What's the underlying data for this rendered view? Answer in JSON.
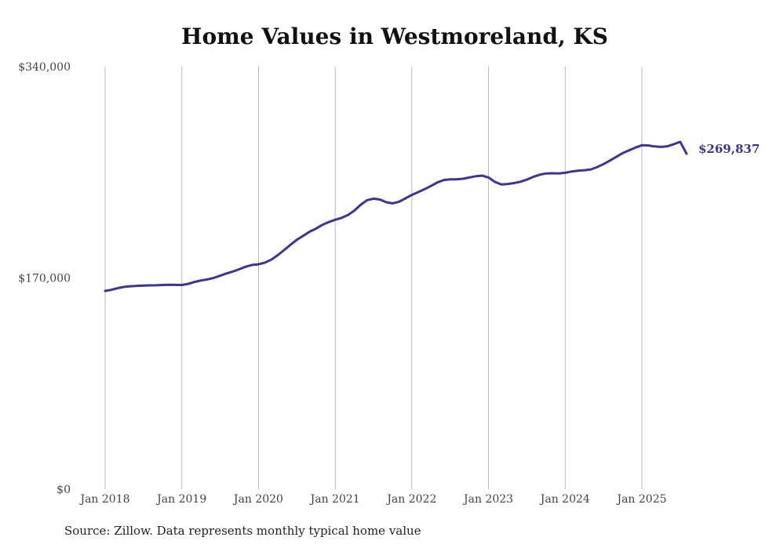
{
  "chart_data": {
    "type": "line",
    "title": "Home Values in Westmoreland, KS",
    "xlabel": "",
    "ylabel": "",
    "ylim": [
      0,
      340000
    ],
    "y_ticks": [
      0,
      170000,
      340000
    ],
    "y_tick_labels": [
      "$0",
      "$170,000",
      "$340,000"
    ],
    "x_ticks": [
      "2018-01",
      "2019-01",
      "2020-01",
      "2021-01",
      "2022-01",
      "2023-01",
      "2024-01",
      "2025-01"
    ],
    "x_tick_labels": [
      "Jan 2018",
      "Jan 2019",
      "Jan 2020",
      "Jan 2021",
      "Jan 2022",
      "Jan 2023",
      "Jan 2024",
      "Jan 2025"
    ],
    "grid": "vertical",
    "line_color": "#3d3594",
    "end_label": "$269,837",
    "series": [
      {
        "x": [
          "2018-01",
          "2018-02",
          "2018-03",
          "2018-04",
          "2018-05",
          "2018-06",
          "2018-07",
          "2018-08",
          "2018-09",
          "2018-10",
          "2018-11",
          "2018-12",
          "2019-01",
          "2019-02",
          "2019-03",
          "2019-04",
          "2019-05",
          "2019-06",
          "2019-07",
          "2019-08",
          "2019-09",
          "2019-10",
          "2019-11",
          "2019-12",
          "2020-01",
          "2020-02",
          "2020-03",
          "2020-04",
          "2020-05",
          "2020-06",
          "2020-07",
          "2020-08",
          "2020-09",
          "2020-10",
          "2020-11",
          "2020-12",
          "2021-01",
          "2021-02",
          "2021-03",
          "2021-04",
          "2021-05",
          "2021-06",
          "2021-07",
          "2021-08",
          "2021-09",
          "2021-10",
          "2021-11",
          "2021-12",
          "2022-01",
          "2022-02",
          "2022-03",
          "2022-04",
          "2022-05",
          "2022-06",
          "2022-07",
          "2022-08",
          "2022-09",
          "2022-10",
          "2022-11",
          "2022-12",
          "2023-01",
          "2023-02",
          "2023-03",
          "2023-04",
          "2023-05",
          "2023-06",
          "2023-07",
          "2023-08",
          "2023-09",
          "2023-10",
          "2023-11",
          "2023-12",
          "2024-01",
          "2024-02",
          "2024-03",
          "2024-04",
          "2024-05",
          "2024-06",
          "2024-07",
          "2024-08",
          "2024-09",
          "2024-10",
          "2024-11",
          "2024-12",
          "2025-01",
          "2025-02",
          "2025-03",
          "2025-04",
          "2025-05",
          "2025-06",
          "2025-07",
          "2025-08"
        ],
        "values": [
          159500,
          160500,
          161800,
          162800,
          163300,
          163600,
          163900,
          164000,
          164100,
          164300,
          164500,
          164400,
          164300,
          165200,
          166800,
          167900,
          168800,
          170000,
          171800,
          173600,
          175200,
          177000,
          179000,
          180500,
          181000,
          182300,
          184700,
          188300,
          192400,
          196600,
          200700,
          203900,
          207200,
          209700,
          212700,
          215000,
          216800,
          218300,
          220600,
          224200,
          228900,
          232600,
          233800,
          233100,
          230900,
          230000,
          231300,
          234000,
          236800,
          239100,
          241400,
          244000,
          246800,
          248800,
          249300,
          249300,
          249800,
          250800,
          251800,
          252300,
          250800,
          247300,
          245200,
          245600,
          246300,
          247400,
          249100,
          251300,
          253000,
          254100,
          254200,
          254000,
          254600,
          255600,
          256200,
          256700,
          257300,
          259200,
          261600,
          264400,
          267400,
          270400,
          272700,
          274900,
          276700,
          276600,
          275800,
          275400,
          275900,
          277600,
          279500,
          269837
        ]
      }
    ]
  },
  "source_note": "Source: Zillow. Data represents monthly typical home value"
}
